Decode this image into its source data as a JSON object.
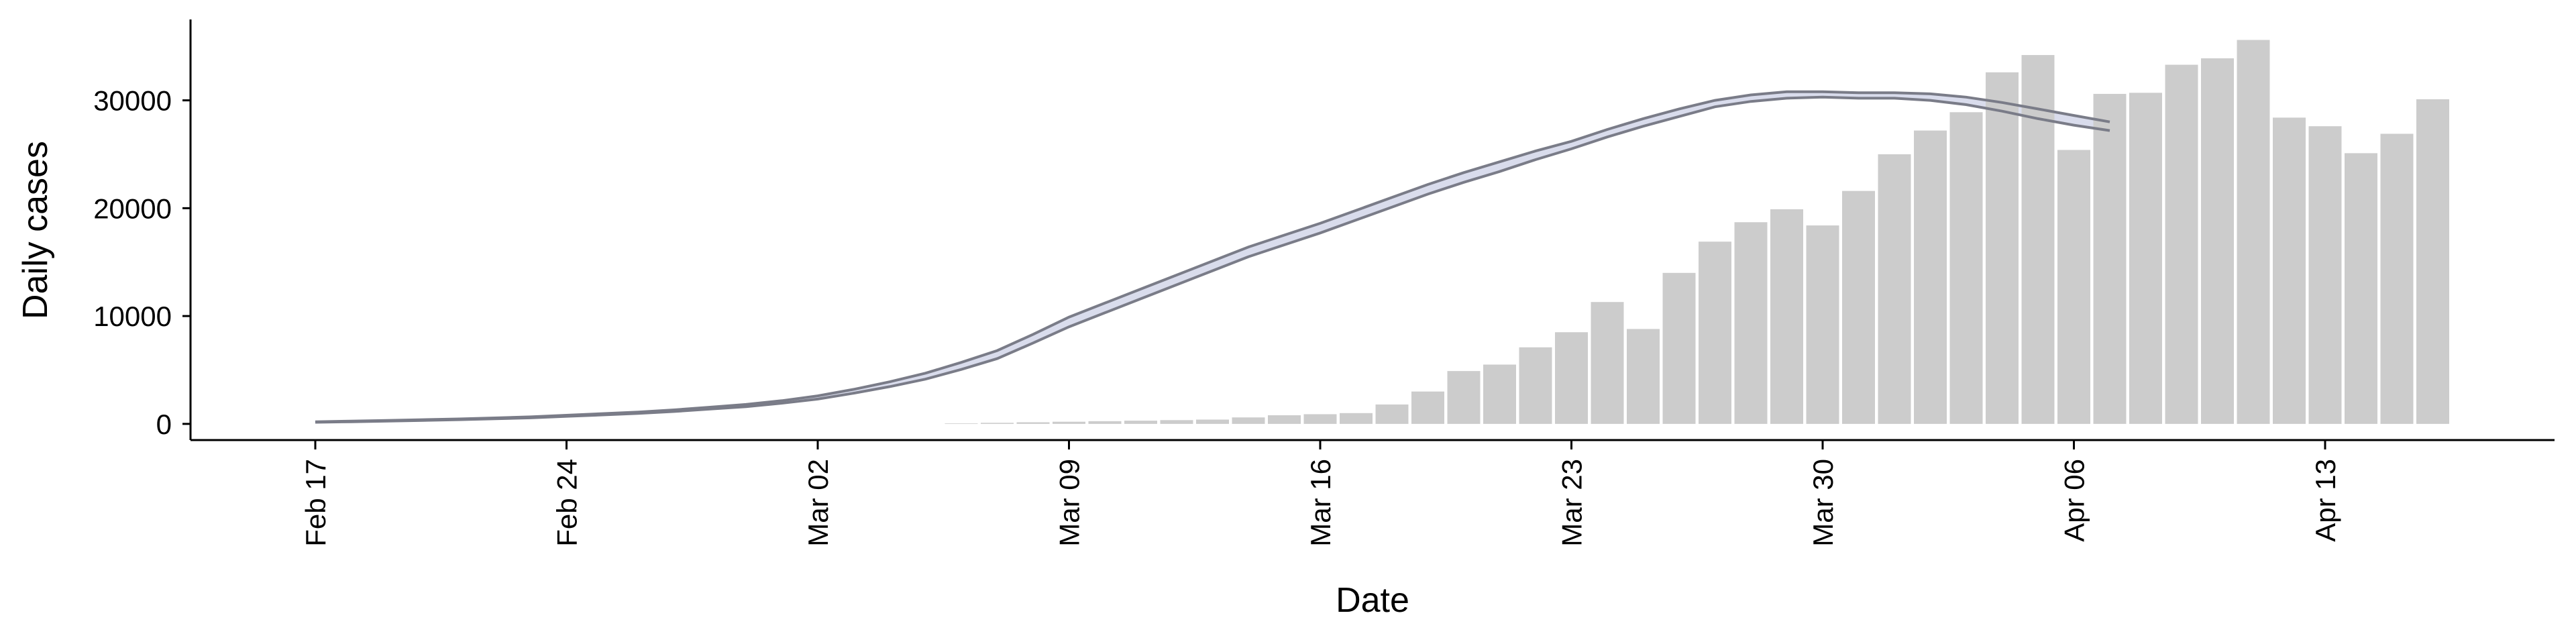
{
  "chart_data": {
    "type": "bar",
    "x_label": "Date",
    "y_label": "Daily cases",
    "categories": [
      "Feb 17",
      null,
      null,
      null,
      null,
      null,
      null,
      "Feb 24",
      null,
      null,
      null,
      null,
      null,
      null,
      "Mar 02",
      null,
      null,
      null,
      null,
      null,
      null,
      "Mar 09",
      null,
      null,
      null,
      null,
      null,
      null,
      "Mar 16",
      null,
      null,
      null,
      null,
      null,
      null,
      "Mar 23",
      null,
      null,
      null,
      null,
      null,
      null,
      "Mar 30",
      null,
      null,
      null,
      null,
      null,
      null,
      "Apr 06",
      null,
      null,
      null,
      null,
      null,
      null,
      "Apr 13",
      null,
      null,
      null
    ],
    "series": [
      {
        "type": "bar",
        "color": "#cccccc",
        "values": [
          null,
          null,
          null,
          null,
          null,
          null,
          null,
          null,
          null,
          null,
          null,
          null,
          null,
          null,
          null,
          null,
          null,
          null,
          50,
          100,
          150,
          200,
          250,
          300,
          350,
          400,
          600,
          800,
          900,
          1000,
          1800,
          3000,
          4900,
          5500,
          7100,
          8500,
          11300,
          8800,
          14000,
          16900,
          18700,
          19900,
          18400,
          21600,
          25000,
          27200,
          28900,
          32600,
          34200,
          25400,
          30600,
          30700,
          33300,
          33900,
          35600,
          28400,
          27600,
          25100,
          26900,
          30100
        ]
      },
      {
        "type": "line",
        "color": "#7a7c88",
        "values": [
          200,
          260,
          320,
          390,
          460,
          550,
          650,
          800,
          950,
          1100,
          1300,
          1550,
          1800,
          2150,
          2600,
          3200,
          3900,
          4700,
          5700,
          6800,
          8300,
          9900,
          11200,
          12500,
          13800,
          15100,
          16400,
          17500,
          18600,
          19800,
          21000,
          22200,
          23300,
          24300,
          25300,
          26200,
          27300,
          28300,
          29200,
          30000,
          30500,
          30800,
          30800,
          30700,
          30700,
          30600,
          30300,
          29800,
          29200,
          28600,
          28000,
          null,
          null,
          null,
          null,
          null,
          null,
          null,
          null,
          null
        ]
      },
      {
        "type": "line",
        "color": "#7a7c88",
        "values": [
          150,
          200,
          260,
          320,
          390,
          470,
          560,
          700,
          830,
          970,
          1150,
          1380,
          1600,
          1920,
          2300,
          2850,
          3450,
          4150,
          5050,
          6050,
          7500,
          9000,
          10300,
          11600,
          12900,
          14200,
          15500,
          16600,
          17700,
          18900,
          20100,
          21300,
          22400,
          23400,
          24500,
          25500,
          26600,
          27600,
          28500,
          29400,
          29900,
          30200,
          30300,
          30200,
          30200,
          30000,
          29600,
          29000,
          28300,
          27700,
          27200,
          null,
          null,
          null,
          null,
          null,
          null,
          null,
          null,
          null
        ]
      }
    ],
    "band_color": "#d9dcec",
    "ylim": [
      -1500,
      37500
    ],
    "yticks": [
      0,
      10000,
      20000,
      30000
    ]
  }
}
